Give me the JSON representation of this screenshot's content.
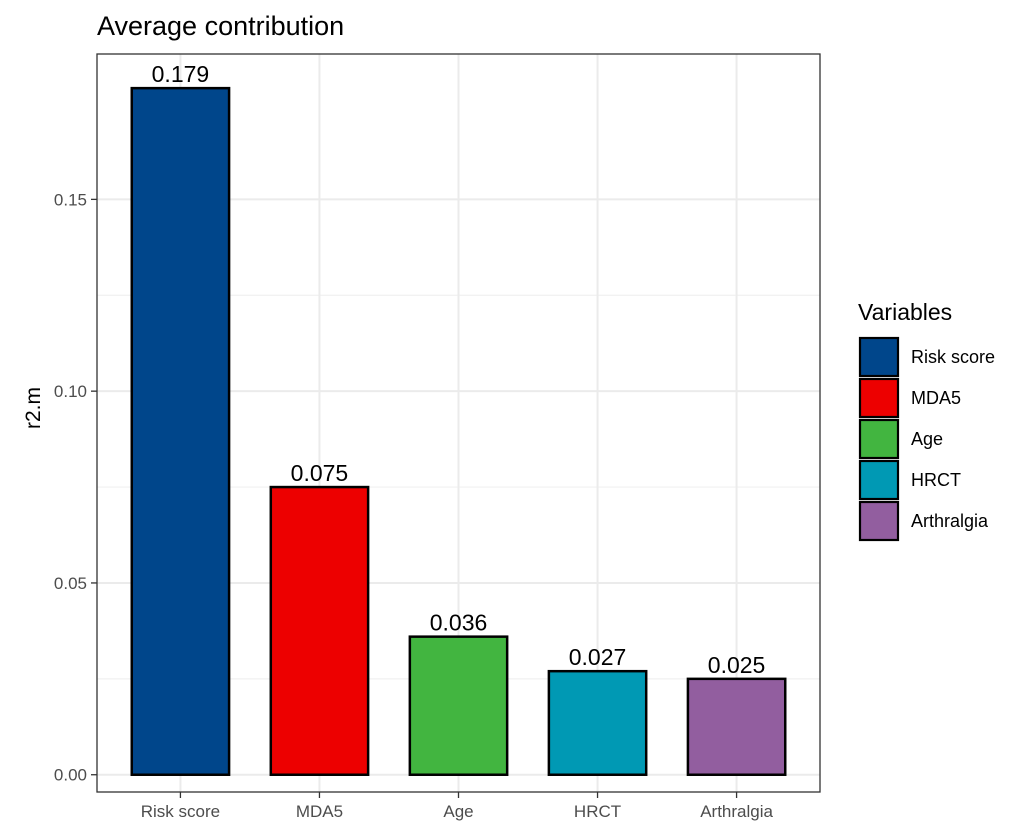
{
  "chart_data": {
    "type": "bar",
    "title": "Average contribution",
    "xlabel": "",
    "ylabel": "r2.m",
    "categories": [
      "Risk score",
      "MDA5",
      "Age",
      "HRCT",
      "Arthralgia"
    ],
    "values": [
      0.179,
      0.075,
      0.036,
      0.027,
      0.025
    ],
    "data_labels": [
      "0.179",
      "0.075",
      "0.036",
      "0.027",
      "0.025"
    ],
    "colors": [
      "#00468B",
      "#ED0000",
      "#42B540",
      "#0099B4",
      "#925E9F"
    ],
    "ylim": [
      -0.0045,
      0.1879
    ],
    "yticks": [
      0,
      0.05,
      0.1,
      0.15
    ],
    "ytick_labels": [
      "0.00",
      "0.05",
      "0.10",
      "0.15"
    ],
    "grid": true,
    "legend": {
      "title": "Variables",
      "position": "right",
      "entries": [
        "Risk score",
        "MDA5",
        "Age",
        "HRCT",
        "Arthralgia"
      ]
    }
  }
}
